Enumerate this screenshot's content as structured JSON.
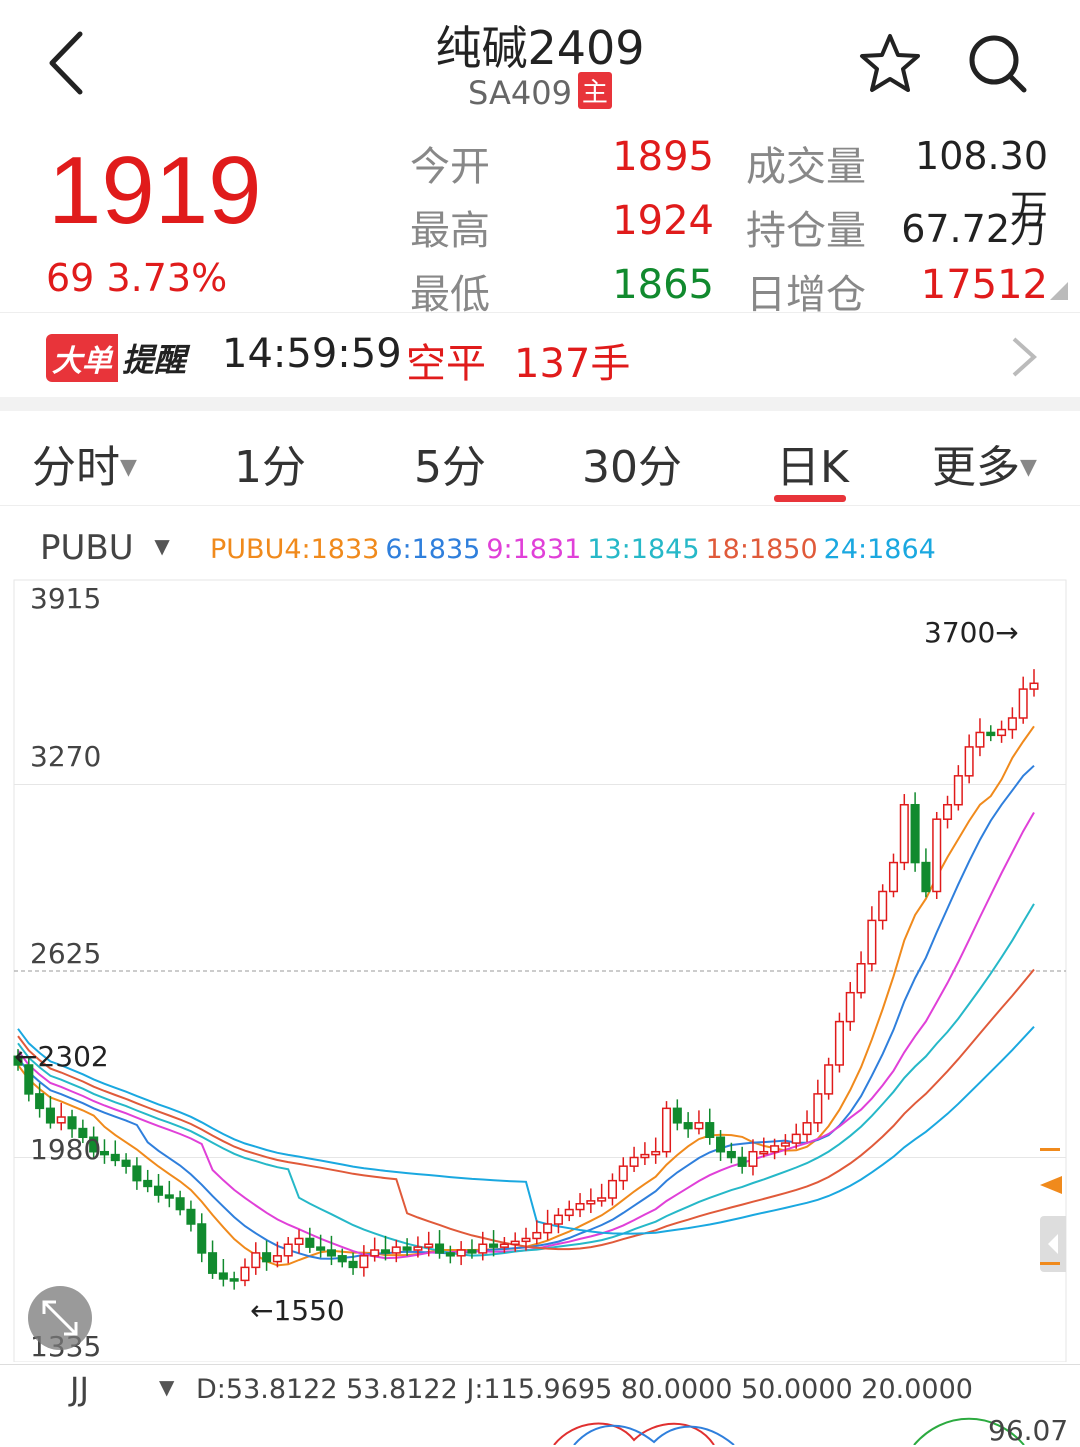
{
  "header": {
    "title": "纯碱2409",
    "code": "SA409",
    "badge": "主",
    "back_icon": "chevron-left-icon",
    "star_icon": "star-icon",
    "search_icon": "search-icon"
  },
  "quote": {
    "price": "1919",
    "change": "69",
    "change_pct": "3.73%",
    "stats": [
      {
        "label": "今开",
        "value": "1895",
        "label2": "成交量",
        "value2": "108.30万"
      },
      {
        "label": "最高",
        "value": "1924",
        "label2": "持仓量",
        "value2": "67.72万"
      },
      {
        "label": "最低",
        "value": "1865",
        "label2": "日增仓",
        "value2": "17512"
      }
    ]
  },
  "alert": {
    "badge1": "大单",
    "badge2": "提醒",
    "time": "14:59:59",
    "type": "空平",
    "volume": "137手"
  },
  "tabs": [
    "分时",
    "1分",
    "5分",
    "30分",
    "日K",
    "更多"
  ],
  "active_tab": "日K",
  "indicator": {
    "name": "PUBU",
    "ma": [
      {
        "label": "PUBU4:1833",
        "color": "#f08a1c"
      },
      {
        "label": "6:1835",
        "color": "#2f7fdc"
      },
      {
        "label": "9:1831",
        "color": "#e040d8"
      },
      {
        "label": "13:1845",
        "color": "#26b8c8"
      },
      {
        "label": "18:1850",
        "color": "#e05a3a"
      },
      {
        "label": "24:1864",
        "color": "#1aa8e0"
      }
    ]
  },
  "chart_data": {
    "type": "candlestick",
    "y_ticks": [
      "3915",
      "3270",
      "2625",
      "1980",
      "1335"
    ],
    "ylim": [
      1335,
      3915
    ],
    "annotations": {
      "high": "3700→",
      "low": "←1550",
      "left": "←2302"
    },
    "close_approx": [
      2300,
      2200,
      2150,
      2100,
      2120,
      2080,
      2050,
      2000,
      1990,
      1970,
      1950,
      1900,
      1880,
      1850,
      1840,
      1800,
      1750,
      1650,
      1580,
      1560,
      1555,
      1600,
      1650,
      1620,
      1640,
      1680,
      1700,
      1670,
      1660,
      1640,
      1620,
      1600,
      1640,
      1660,
      1650,
      1670,
      1660,
      1670,
      1680,
      1650,
      1640,
      1660,
      1650,
      1680,
      1670,
      1680,
      1690,
      1700,
      1720,
      1750,
      1780,
      1800,
      1820,
      1830,
      1840,
      1900,
      1950,
      1980,
      1990,
      2000,
      2150,
      2100,
      2080,
      2100,
      2050,
      2000,
      1980,
      1950,
      2000,
      2000,
      2020,
      2030,
      2060,
      2100,
      2200,
      2300,
      2450,
      2550,
      2650,
      2800,
      2900,
      3000,
      3200,
      3000,
      2900,
      3150,
      3200,
      3300,
      3400,
      3450,
      3440,
      3460,
      3500,
      3600,
      3620
    ]
  },
  "sub_indicator": {
    "name": "JJ",
    "values": "D:53.8122 53.8122 J:115.9695 80.0000 50.0000 20.0000",
    "right_value": "96.07"
  }
}
